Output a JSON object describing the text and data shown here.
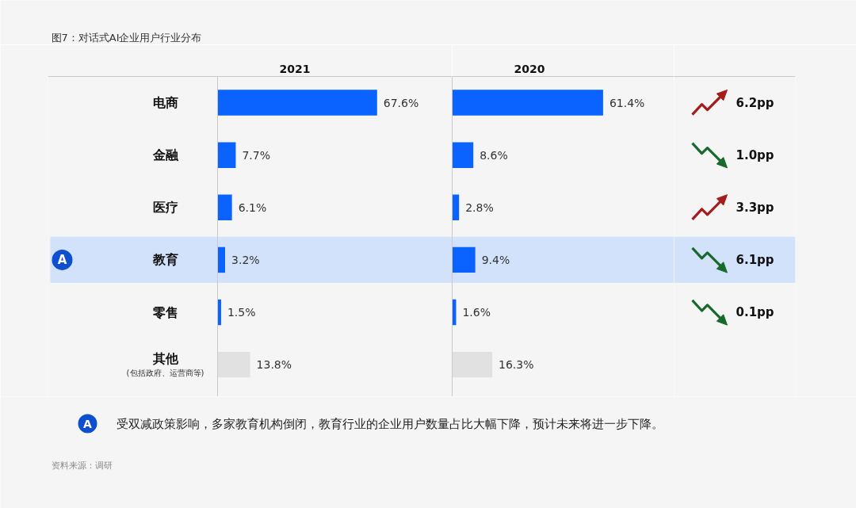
{
  "chart_data": [
    {
      "type": "bar",
      "orientation": "horizontal",
      "title": "2021",
      "categories": [
        "电商",
        "金融",
        "医疗",
        "教育",
        "零售",
        "其他\n(包括政府、运营商等)"
      ],
      "values": [
        67.6,
        7.7,
        6.1,
        3.2,
        1.5,
        13.8
      ],
      "value_labels": [
        "67.6%",
        "7.7%",
        "6.1%",
        "3.2%",
        "1.5%",
        "13.8%"
      ],
      "colors": [
        "#0a62ff",
        "#0a62ff",
        "#0a62ff",
        "#0a62ff",
        "#0a62ff",
        "#e1e1e1"
      ],
      "bands": [
        {
          "axis": "y",
          "from": "教育",
          "to": "教育",
          "label": "A",
          "color": "#d3e2fb"
        }
      ],
      "tick_labels": "y",
      "annotations": [
        "图7：对话式AI企业用户行业分布",
        "受双减政策影响，多家教育机构倒闭，教育行业的企业用户数量占比大幅下降，预计未来将进一步下降。",
        "资料来源：调研"
      ]
    },
    {
      "type": "bar",
      "orientation": "horizontal",
      "title": "2020",
      "categories": [
        "电商",
        "金融",
        "医疗",
        "教育",
        "零售",
        "其他\n(包括政府、运营商等)"
      ],
      "values": [
        61.4,
        8.6,
        2.8,
        9.4,
        1.6,
        16.3
      ],
      "value_labels": [
        "61.4%",
        "8.6%",
        "2.8%",
        "9.4%",
        "1.6%",
        "16.3%"
      ],
      "colors": [
        "#0a62ff",
        "#0a62ff",
        "#0a62ff",
        "#0a62ff",
        "#0a62ff",
        "#e1e1e1"
      ],
      "bands": [
        {
          "axis": "y",
          "from": "教育",
          "to": "教育",
          "color": "#d3e2fb"
        }
      ],
      "tick_labels": false
    },
    {
      "type": "other",
      "values": [
        6.2,
        1.0,
        3.3,
        6.1,
        0.1,
        null
      ],
      "value_labels": [
        "6.2pp",
        "1.0pp",
        "3.3pp",
        "6.1pp",
        "0.1pp",
        null
      ],
      "colors": [
        "#a51c1c",
        "#17692c",
        "#a51c1c",
        "#17692c",
        "#17692c",
        null
      ]
    }
  ]
}
